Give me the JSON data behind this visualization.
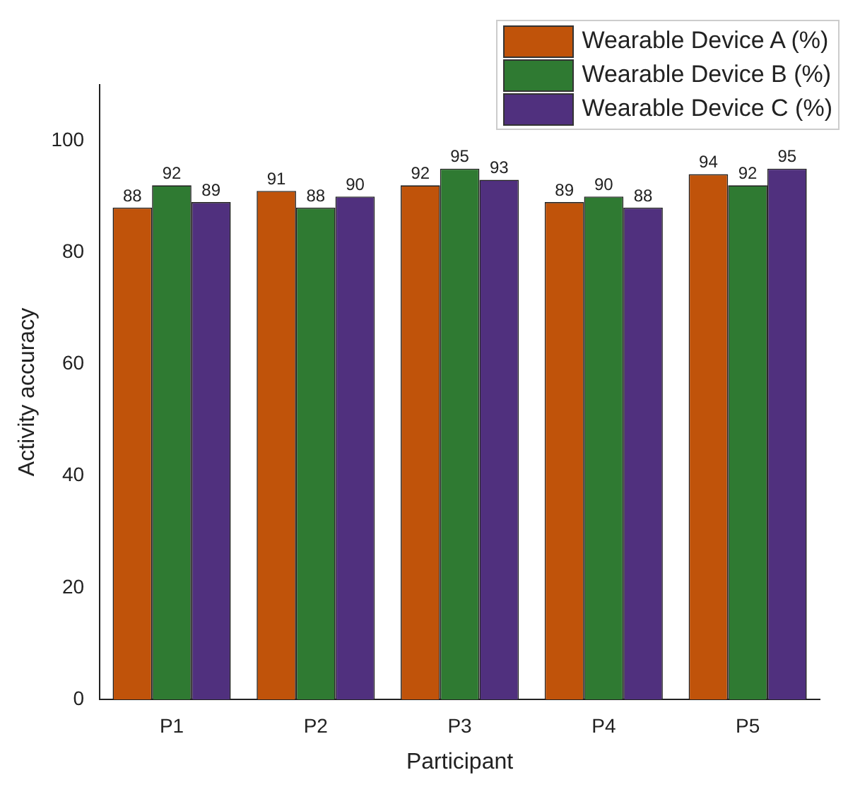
{
  "chart_data": {
    "type": "bar",
    "xlabel": "Participant",
    "ylabel": "Activity accuracy",
    "categories": [
      "P1",
      "P2",
      "P3",
      "P4",
      "P5"
    ],
    "series": [
      {
        "name": "Wearable Device A (%)",
        "color": "#c0530a",
        "values": [
          88,
          91,
          92,
          89,
          94
        ]
      },
      {
        "name": "Wearable Device B (%)",
        "color": "#2f7a32",
        "values": [
          92,
          88,
          95,
          90,
          92
        ]
      },
      {
        "name": "Wearable Device C (%)",
        "color": "#50307e",
        "values": [
          89,
          90,
          93,
          88,
          95
        ]
      }
    ],
    "ylim": [
      0,
      110
    ],
    "yticks": [
      0,
      20,
      40,
      60,
      80,
      100
    ],
    "grid": false,
    "legend": "top right",
    "data_labels": true
  }
}
